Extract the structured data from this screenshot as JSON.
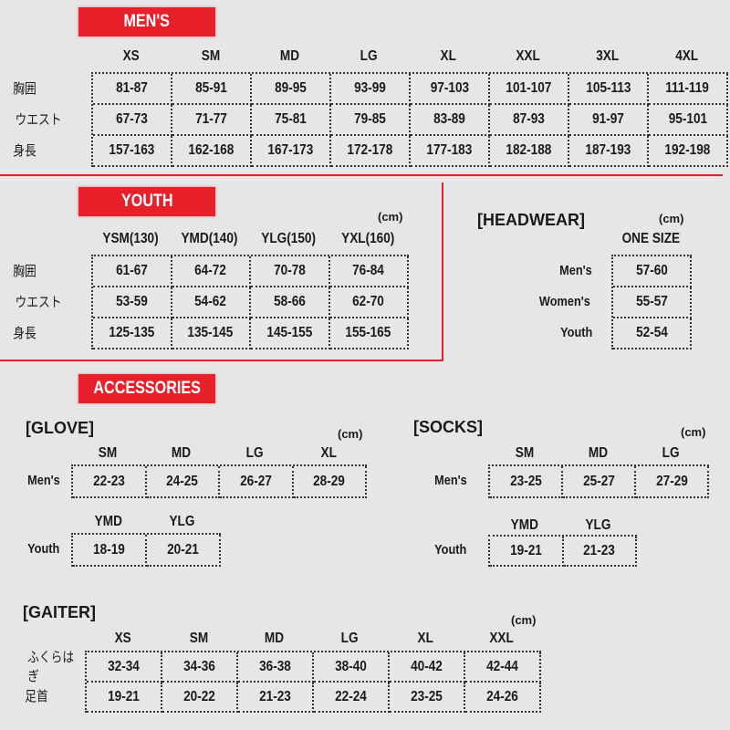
{
  "colors": {
    "accent": "#e8202a",
    "background": "#e6e6e6"
  },
  "unit": "(cm)",
  "mens": {
    "banner": "MEN'S",
    "columns": [
      "XS",
      "SM",
      "MD",
      "LG",
      "XL",
      "XXL",
      "3XL",
      "4XL"
    ],
    "rows": [
      {
        "label": "胸囲",
        "values": [
          "81-87",
          "85-91",
          "89-95",
          "93-99",
          "97-103",
          "101-107",
          "105-113",
          "111-119"
        ]
      },
      {
        "label": "ウエスト",
        "values": [
          "67-73",
          "71-77",
          "75-81",
          "79-85",
          "83-89",
          "87-93",
          "91-97",
          "95-101"
        ]
      },
      {
        "label": "身長",
        "values": [
          "157-163",
          "162-168",
          "167-173",
          "172-178",
          "177-183",
          "182-188",
          "187-193",
          "192-198"
        ]
      }
    ]
  },
  "youth": {
    "banner": "YOUTH",
    "unit": "(cm)",
    "columns": [
      "YSM(130)",
      "YMD(140)",
      "YLG(150)",
      "YXL(160)"
    ],
    "rows": [
      {
        "label": "胸囲",
        "values": [
          "61-67",
          "64-72",
          "70-78",
          "76-84"
        ]
      },
      {
        "label": "ウエスト",
        "values": [
          "53-59",
          "54-62",
          "58-66",
          "62-70"
        ]
      },
      {
        "label": "身長",
        "values": [
          "125-135",
          "135-145",
          "145-155",
          "155-165"
        ]
      }
    ]
  },
  "headwear": {
    "title": "[HEADWEAR]",
    "unit": "(cm)",
    "columns": [
      "ONE SIZE"
    ],
    "rows": [
      {
        "label": "Men's",
        "values": [
          "57-60"
        ]
      },
      {
        "label": "Women's",
        "values": [
          "55-57"
        ]
      },
      {
        "label": "Youth",
        "values": [
          "52-54"
        ]
      }
    ]
  },
  "accessories": {
    "banner": "ACCESSORIES"
  },
  "glove": {
    "title": "[GLOVE]",
    "unit": "(cm)",
    "mens": {
      "columns": [
        "SM",
        "MD",
        "LG",
        "XL"
      ],
      "rows": [
        {
          "label": "Men's",
          "values": [
            "22-23",
            "24-25",
            "26-27",
            "28-29"
          ]
        }
      ]
    },
    "youth": {
      "columns": [
        "YMD",
        "YLG"
      ],
      "rows": [
        {
          "label": "Youth",
          "values": [
            "18-19",
            "20-21"
          ]
        }
      ]
    }
  },
  "socks": {
    "title": "[SOCKS]",
    "unit": "(cm)",
    "mens": {
      "columns": [
        "SM",
        "MD",
        "LG"
      ],
      "rows": [
        {
          "label": "Men's",
          "values": [
            "23-25",
            "25-27",
            "27-29"
          ]
        }
      ]
    },
    "youth": {
      "columns": [
        "YMD",
        "YLG"
      ],
      "rows": [
        {
          "label": "Youth",
          "values": [
            "19-21",
            "21-23"
          ]
        }
      ]
    }
  },
  "gaiter": {
    "title": "[GAITER]",
    "unit": "(cm)",
    "columns": [
      "XS",
      "SM",
      "MD",
      "LG",
      "XL",
      "XXL"
    ],
    "rows": [
      {
        "label": "ふくらはぎ",
        "values": [
          "32-34",
          "34-36",
          "36-38",
          "38-40",
          "40-42",
          "42-44"
        ]
      },
      {
        "label": "足首",
        "values": [
          "19-21",
          "20-22",
          "21-23",
          "22-24",
          "23-25",
          "24-26"
        ]
      }
    ]
  }
}
